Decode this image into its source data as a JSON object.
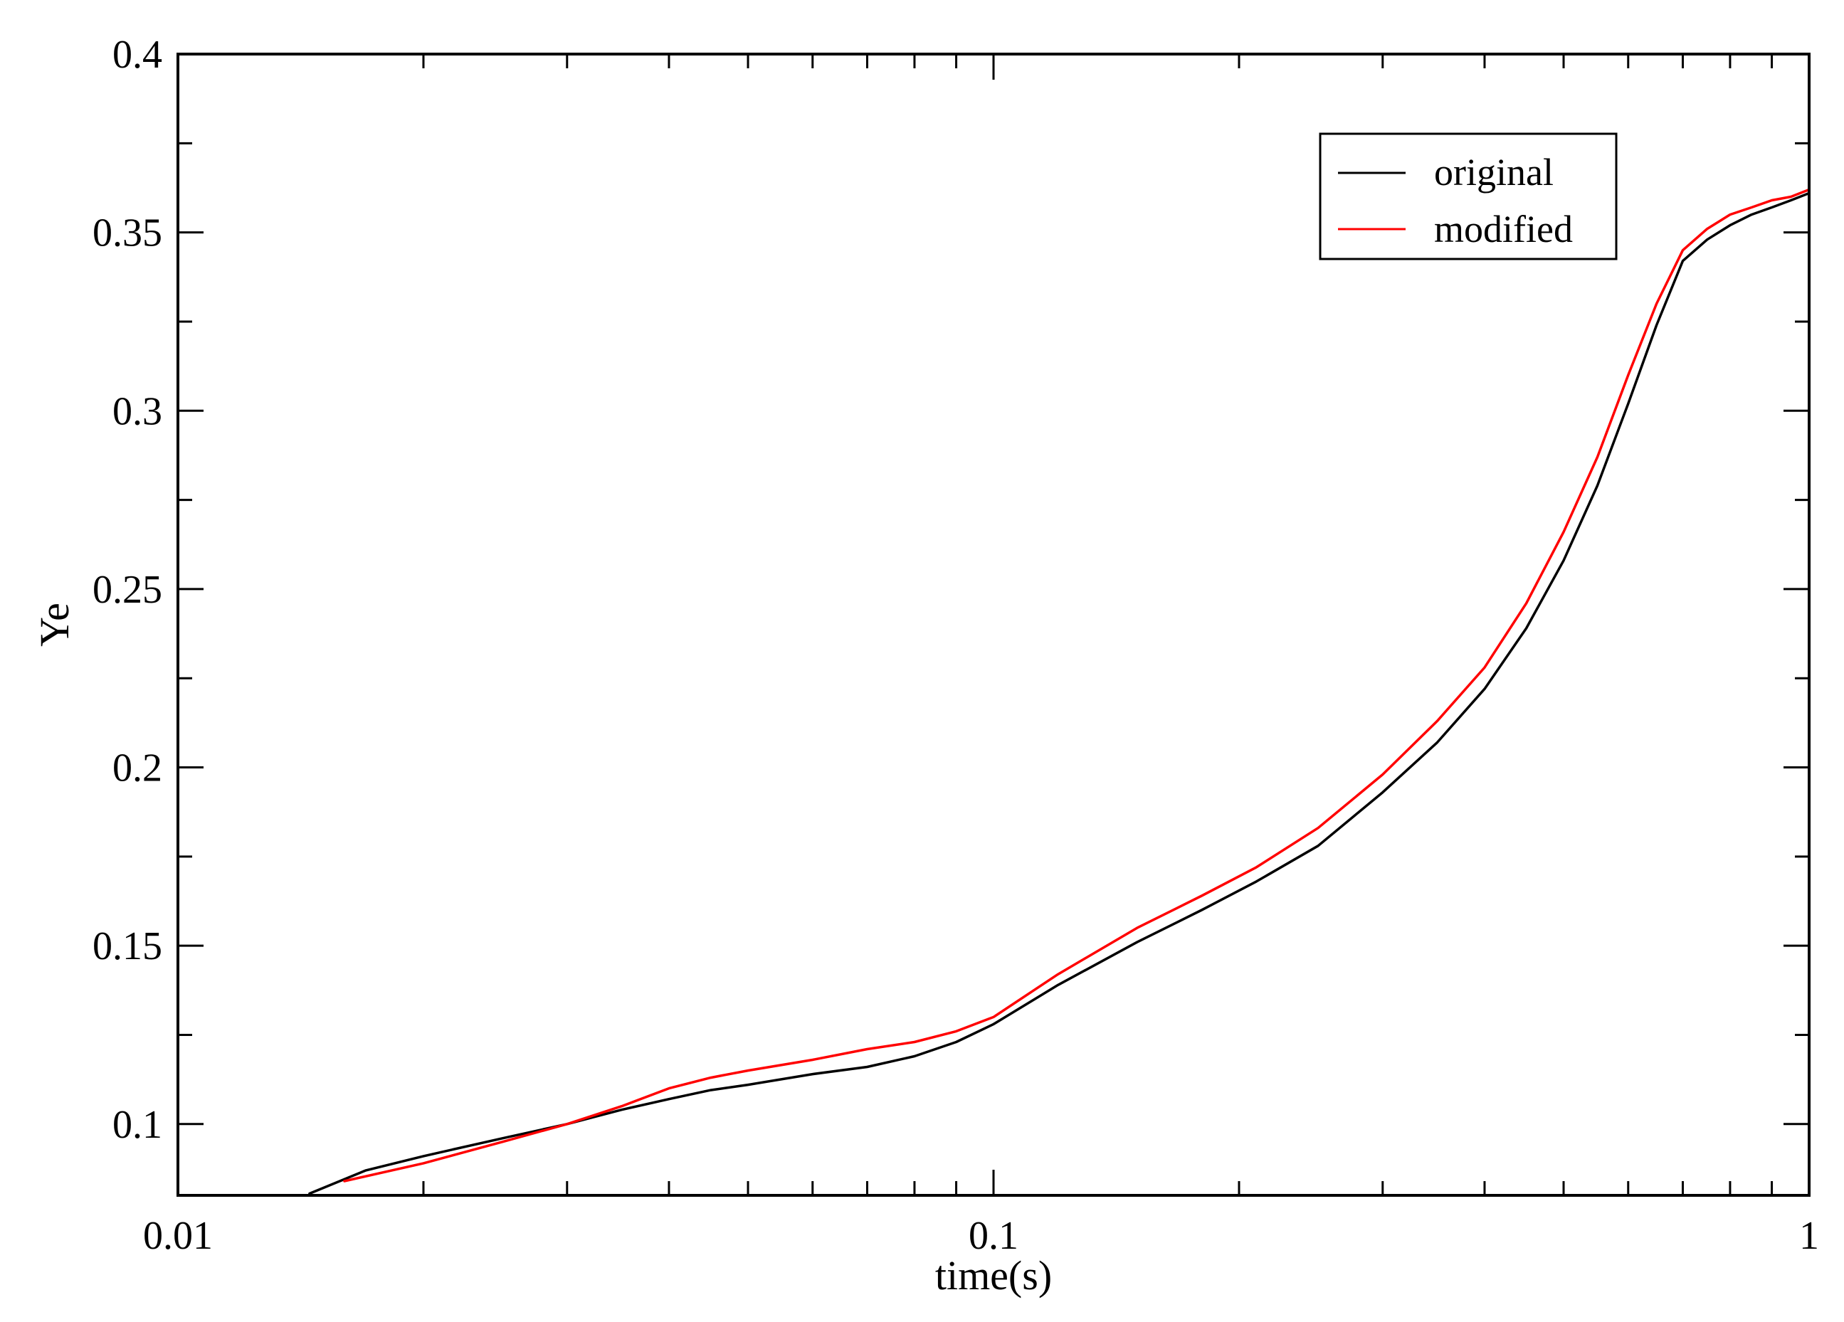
{
  "chart_data": {
    "type": "line",
    "title": "",
    "xlabel": "time(s)",
    "ylabel": "Ye",
    "xscale": "log",
    "xlim": [
      0.01,
      1
    ],
    "ylim": [
      0.08,
      0.4
    ],
    "x_major_ticks": [
      0.01,
      0.1,
      1
    ],
    "x_tick_labels": [
      "0.01",
      "0.1",
      "1"
    ],
    "y_major_ticks": [
      0.1,
      0.15,
      0.2,
      0.25,
      0.3,
      0.35,
      0.4
    ],
    "y_tick_labels": [
      "0.1",
      "0.15",
      "0.2",
      "0.25",
      "0.3",
      "0.35",
      "0.4"
    ],
    "grid": false,
    "legend_position": "top-right",
    "series": [
      {
        "name": "original",
        "color": "#000000",
        "x": [
          0.0145,
          0.017,
          0.02,
          0.025,
          0.03,
          0.035,
          0.04,
          0.045,
          0.05,
          0.06,
          0.07,
          0.08,
          0.09,
          0.1,
          0.12,
          0.15,
          0.18,
          0.21,
          0.25,
          0.3,
          0.35,
          0.4,
          0.45,
          0.5,
          0.55,
          0.6,
          0.65,
          0.7,
          0.75,
          0.8,
          0.85,
          0.9,
          0.95,
          1.0
        ],
        "y": [
          0.0805,
          0.087,
          0.091,
          0.096,
          0.1,
          0.104,
          0.107,
          0.1095,
          0.111,
          0.114,
          0.116,
          0.119,
          0.123,
          0.128,
          0.139,
          0.151,
          0.16,
          0.168,
          0.178,
          0.193,
          0.207,
          0.222,
          0.239,
          0.258,
          0.279,
          0.302,
          0.324,
          0.342,
          0.348,
          0.352,
          0.355,
          0.357,
          0.359,
          0.361
        ]
      },
      {
        "name": "modified",
        "color": "#ff0000",
        "x": [
          0.016,
          0.02,
          0.025,
          0.03,
          0.035,
          0.04,
          0.045,
          0.05,
          0.06,
          0.07,
          0.08,
          0.09,
          0.1,
          0.12,
          0.15,
          0.18,
          0.21,
          0.25,
          0.3,
          0.35,
          0.4,
          0.45,
          0.5,
          0.55,
          0.6,
          0.65,
          0.7,
          0.75,
          0.8,
          0.85,
          0.9,
          0.95,
          1.0
        ],
        "y": [
          0.084,
          0.089,
          0.095,
          0.1,
          0.105,
          0.11,
          0.113,
          0.115,
          0.118,
          0.121,
          0.123,
          0.126,
          0.13,
          0.142,
          0.155,
          0.164,
          0.172,
          0.183,
          0.198,
          0.213,
          0.228,
          0.246,
          0.266,
          0.287,
          0.31,
          0.33,
          0.345,
          0.351,
          0.355,
          0.357,
          0.359,
          0.36,
          0.362
        ]
      }
    ]
  }
}
